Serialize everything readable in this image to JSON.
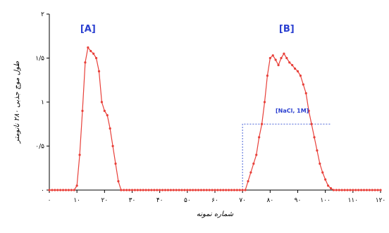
{
  "chart_data": {
    "type": "line",
    "xlabel": "شماره نمونه",
    "ylabel": "طول موج جذبی ۲۸۰ نانومتر",
    "xlim": [
      0,
      120
    ],
    "ylim": [
      0,
      2
    ],
    "x_ticks": [
      0,
      10,
      20,
      30,
      40,
      50,
      60,
      70,
      80,
      90,
      100,
      110,
      120
    ],
    "x_tick_labels": [
      "۰",
      "۱۰",
      "۲۰",
      "۳۰",
      "۴۰",
      "۵۰",
      "۶۰",
      "۷۰",
      "۸۰",
      "۹۰",
      "۱۰۰",
      "۱۱۰",
      "۱۲۰"
    ],
    "y_ticks": [
      0,
      0.5,
      1,
      1.5,
      2
    ],
    "y_tick_labels": [
      "۰",
      "۰/۵",
      "۱",
      "۱/۵",
      "۲"
    ],
    "grid": false,
    "annotations": [
      {
        "text": "[A]",
        "x": 14,
        "y": 1.8
      },
      {
        "text": "[B]",
        "x": 86,
        "y": 1.8
      }
    ],
    "gradient_label": "[NaCl, 1M]",
    "gradient": {
      "x": [
        70,
        70,
        102
      ],
      "y": [
        0,
        0.75,
        0.75
      ]
    },
    "series": [
      {
        "color": "#e8403a",
        "x": [
          0,
          1,
          2,
          3,
          4,
          5,
          6,
          7,
          8,
          9,
          10,
          11,
          12,
          13,
          14,
          15,
          16,
          17,
          18,
          19,
          20,
          21,
          22,
          23,
          24,
          25,
          26,
          27,
          28,
          29,
          30,
          31,
          32,
          33,
          34,
          35,
          36,
          37,
          38,
          39,
          40,
          41,
          42,
          43,
          44,
          45,
          46,
          47,
          48,
          49,
          50,
          51,
          52,
          53,
          54,
          55,
          56,
          57,
          58,
          59,
          60,
          61,
          62,
          63,
          64,
          65,
          66,
          67,
          68,
          69,
          70,
          71,
          72,
          73,
          74,
          75,
          76,
          77,
          78,
          79,
          80,
          81,
          82,
          83,
          84,
          85,
          86,
          87,
          88,
          89,
          90,
          91,
          92,
          93,
          94,
          95,
          96,
          97,
          98,
          99,
          100,
          101,
          102,
          103,
          104,
          105,
          106,
          107,
          108,
          109,
          110,
          111,
          112,
          113,
          114,
          115,
          116,
          117,
          118,
          119,
          120
        ],
        "y": [
          0,
          0,
          0,
          0,
          0,
          0,
          0,
          0,
          0,
          0,
          0.05,
          0.4,
          0.9,
          1.45,
          1.62,
          1.58,
          1.55,
          1.5,
          1.35,
          1.0,
          0.9,
          0.85,
          0.7,
          0.5,
          0.3,
          0.1,
          0,
          0,
          0,
          0,
          0,
          0,
          0,
          0,
          0,
          0,
          0,
          0,
          0,
          0,
          0,
          0,
          0,
          0,
          0,
          0,
          0,
          0,
          0,
          0,
          0,
          0,
          0,
          0,
          0,
          0,
          0,
          0,
          0,
          0,
          0,
          0,
          0,
          0,
          0,
          0,
          0,
          0,
          0,
          0,
          0,
          0,
          0.1,
          0.2,
          0.3,
          0.4,
          0.6,
          0.75,
          1.0,
          1.3,
          1.5,
          1.53,
          1.48,
          1.42,
          1.5,
          1.55,
          1.5,
          1.45,
          1.42,
          1.38,
          1.35,
          1.3,
          1.2,
          1.1,
          0.9,
          0.75,
          0.6,
          0.45,
          0.3,
          0.2,
          0.12,
          0.05,
          0.02,
          0,
          0,
          0,
          0,
          0,
          0,
          0,
          0,
          0,
          0,
          0,
          0,
          0,
          0,
          0,
          0,
          0,
          0
        ]
      }
    ]
  }
}
